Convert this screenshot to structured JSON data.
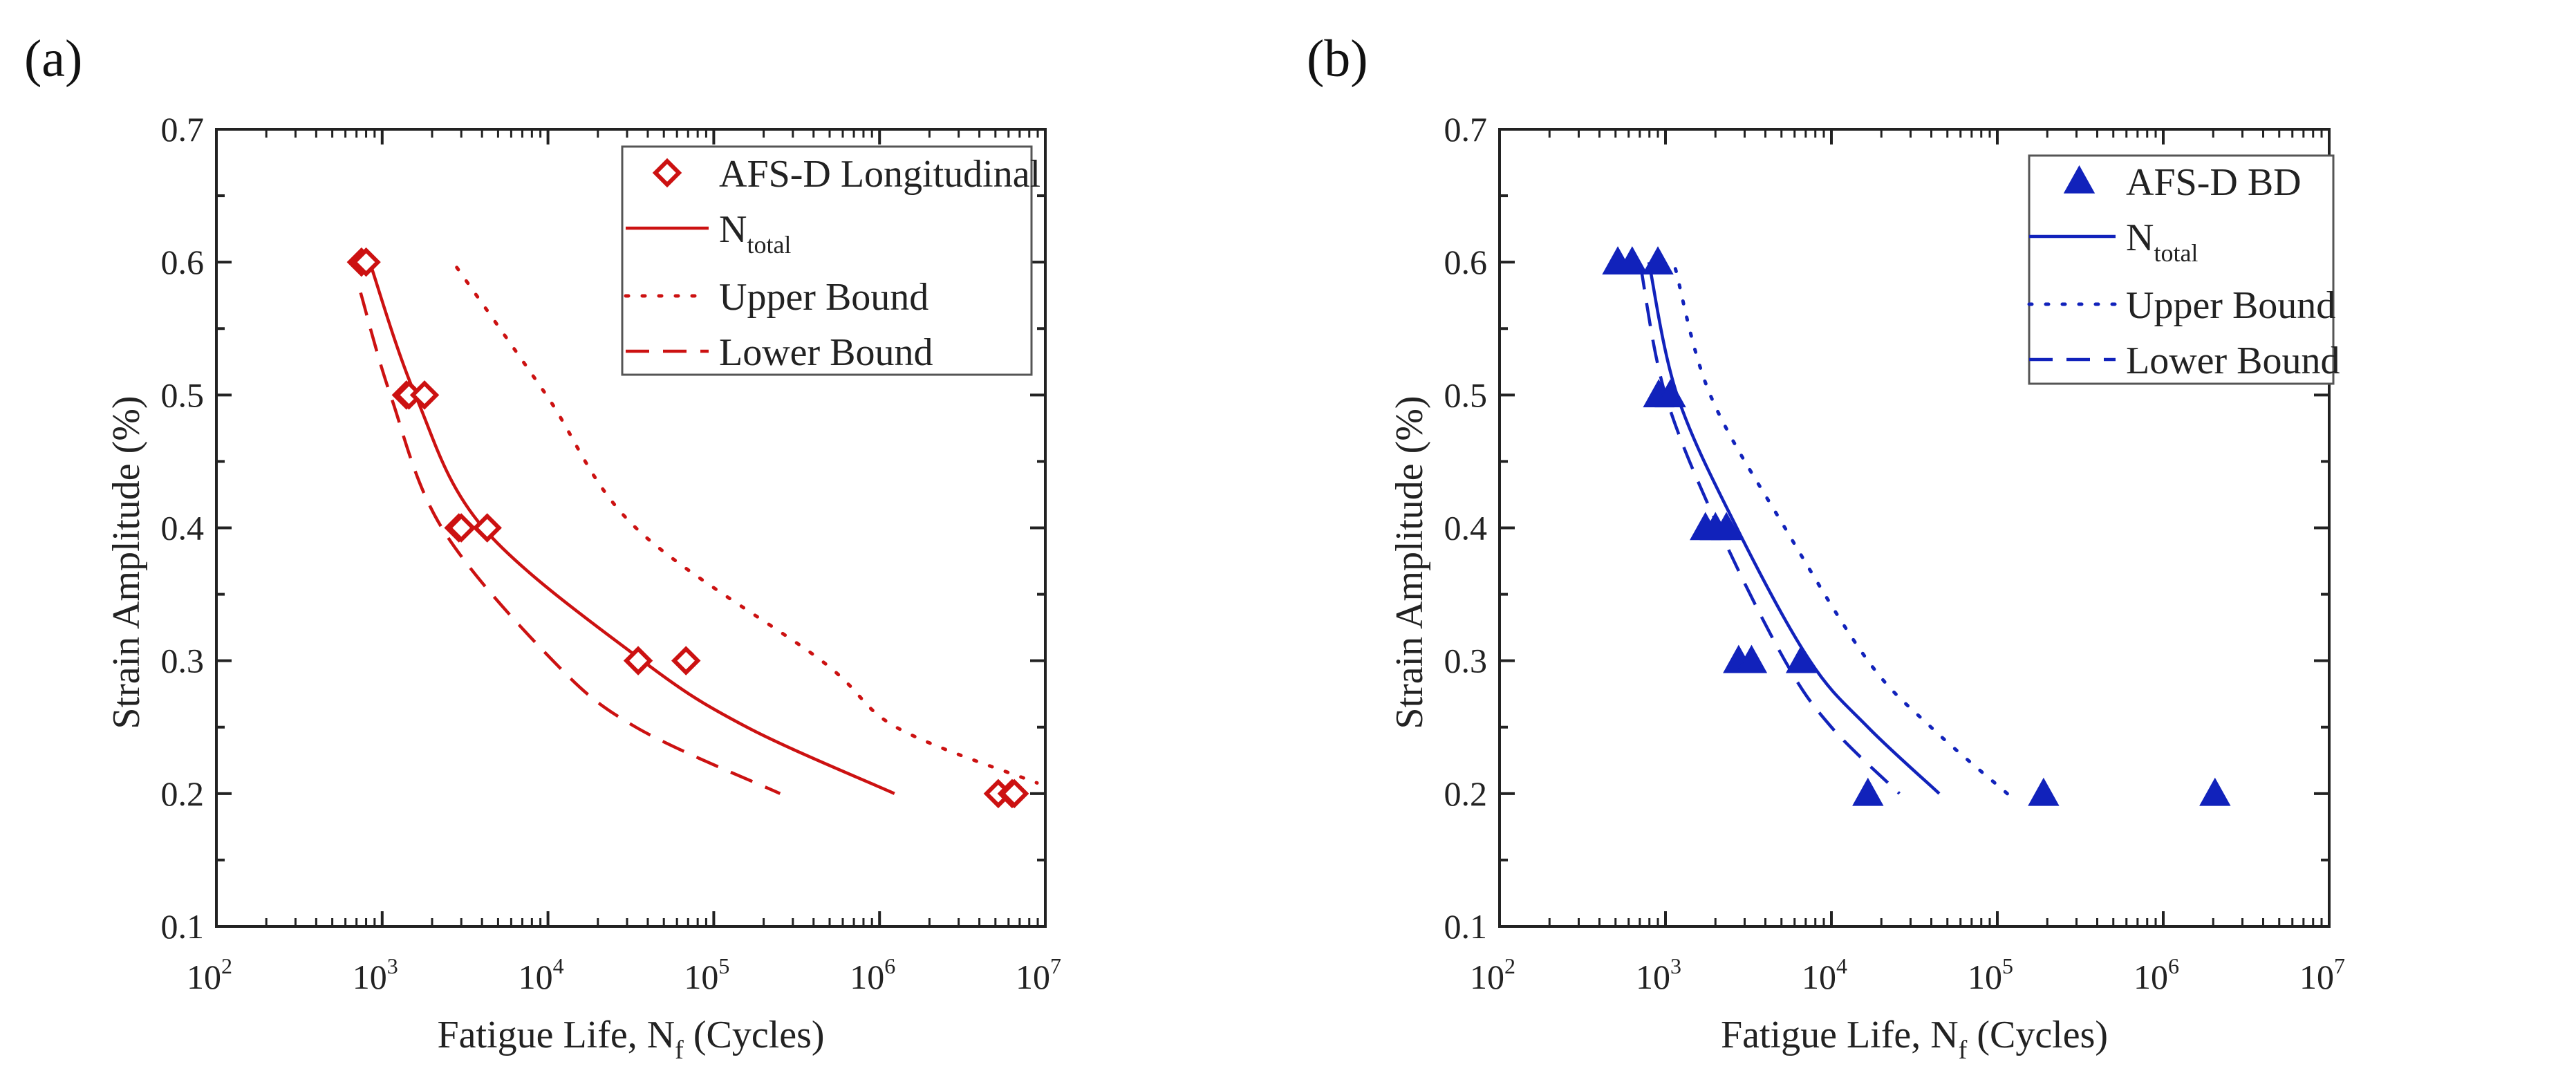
{
  "chart_data": [
    {
      "type": "scatter",
      "panel_label": "(a)",
      "color": "#cc1111",
      "marker": "diamond-open",
      "xlabel": "Fatigue Life, N",
      "xlabel_sub": "f",
      "xlabel_suffix": " (Cycles)",
      "ylabel": "Strain Amplitude (%)",
      "xscale": "log",
      "xlim": [
        100,
        10000000
      ],
      "ylim": [
        0.1,
        0.7
      ],
      "x_tick_labels": [
        {
          "base": "10",
          "exp": "2"
        },
        {
          "base": "10",
          "exp": "3"
        },
        {
          "base": "10",
          "exp": "4"
        },
        {
          "base": "10",
          "exp": "5"
        },
        {
          "base": "10",
          "exp": "6"
        },
        {
          "base": "10",
          "exp": "7"
        }
      ],
      "y_tick_labels": [
        "0.1",
        "0.2",
        "0.3",
        "0.4",
        "0.5",
        "0.6",
        "0.7"
      ],
      "legend_position": "top-right",
      "legend": [
        {
          "label": "AFS-D Longitudinal",
          "style": "marker"
        },
        {
          "label": "N",
          "sub": "total",
          "style": "solid"
        },
        {
          "label": "Upper Bound",
          "style": "dotted"
        },
        {
          "label": "Lower Bound",
          "style": "dashed"
        }
      ],
      "points": {
        "x": [
          750,
          800,
          1400,
          1450,
          1800,
          2900,
          3000,
          4300,
          35000,
          68000,
          5200000,
          6300000,
          6500000
        ],
        "y": [
          0.6,
          0.6,
          0.5,
          0.5,
          0.5,
          0.4,
          0.4,
          0.4,
          0.3,
          0.3,
          0.2,
          0.2,
          0.2
        ]
      },
      "series": [
        {
          "name": "N_total",
          "style": "solid",
          "log10x": [
            2.925,
            3.2,
            3.61,
            4.57,
            5.2,
            6.09
          ],
          "y": [
            0.6,
            0.5,
            0.4,
            0.3,
            0.25,
            0.2
          ]
        },
        {
          "name": "Upper Bound",
          "style": "dotted",
          "log10x": [
            3.45,
            3.99,
            4.53,
            5.65,
            6.1,
            6.95
          ],
          "y": [
            0.596,
            0.5,
            0.4,
            0.3,
            0.25,
            0.208
          ]
        },
        {
          "name": "Lower Bound",
          "style": "dashed",
          "log10x": [
            2.87,
            3.05,
            3.36,
            4.03,
            4.53,
            5.4
          ],
          "y": [
            0.577,
            0.5,
            0.4,
            0.3,
            0.25,
            0.2
          ]
        }
      ]
    },
    {
      "type": "scatter",
      "panel_label": "(b)",
      "color": "#1122bb",
      "marker": "triangle-filled",
      "xlabel": "Fatigue Life, N",
      "xlabel_sub": "f",
      "xlabel_suffix": " (Cycles)",
      "ylabel": "Strain Amplitude (%)",
      "xscale": "log",
      "xlim": [
        100,
        10000000
      ],
      "ylim": [
        0.1,
        0.7
      ],
      "x_tick_labels": [
        {
          "base": "10",
          "exp": "2"
        },
        {
          "base": "10",
          "exp": "3"
        },
        {
          "base": "10",
          "exp": "4"
        },
        {
          "base": "10",
          "exp": "5"
        },
        {
          "base": "10",
          "exp": "6"
        },
        {
          "base": "10",
          "exp": "7"
        }
      ],
      "y_tick_labels": [
        "0.1",
        "0.2",
        "0.3",
        "0.4",
        "0.5",
        "0.6",
        "0.7"
      ],
      "legend_position": "top-right",
      "legend": [
        {
          "label": "AFS-D BD",
          "style": "marker"
        },
        {
          "label": "N",
          "sub": "total",
          "style": "solid"
        },
        {
          "label": "Upper Bound",
          "style": "dotted"
        },
        {
          "label": "Lower Bound",
          "style": "dashed"
        }
      ],
      "points": {
        "x": [
          516,
          630,
          900,
          910,
          1070,
          1740,
          2000,
          2330,
          2760,
          3300,
          6600,
          16600,
          190000,
          2050000
        ],
        "y": [
          0.6,
          0.6,
          0.6,
          0.5,
          0.5,
          0.4,
          0.4,
          0.4,
          0.3,
          0.3,
          0.3,
          0.2,
          0.2,
          0.2
        ]
      },
      "series": [
        {
          "name": "N_total",
          "style": "solid",
          "log10x": [
            2.9,
            3.07,
            3.43,
            3.87,
            4.22,
            4.65
          ],
          "y": [
            0.6,
            0.5,
            0.4,
            0.3,
            0.25,
            0.2
          ]
        },
        {
          "name": "Upper Bound",
          "style": "dotted",
          "log10x": [
            3.06,
            3.27,
            3.72,
            4.22,
            4.6,
            5.06
          ],
          "y": [
            0.595,
            0.5,
            0.4,
            0.3,
            0.25,
            0.2
          ]
        },
        {
          "name": "Lower Bound",
          "style": "dashed",
          "log10x": [
            2.85,
            3.0,
            3.32,
            3.72,
            4.0,
            4.41
          ],
          "y": [
            0.597,
            0.5,
            0.4,
            0.3,
            0.25,
            0.2
          ]
        }
      ]
    }
  ]
}
